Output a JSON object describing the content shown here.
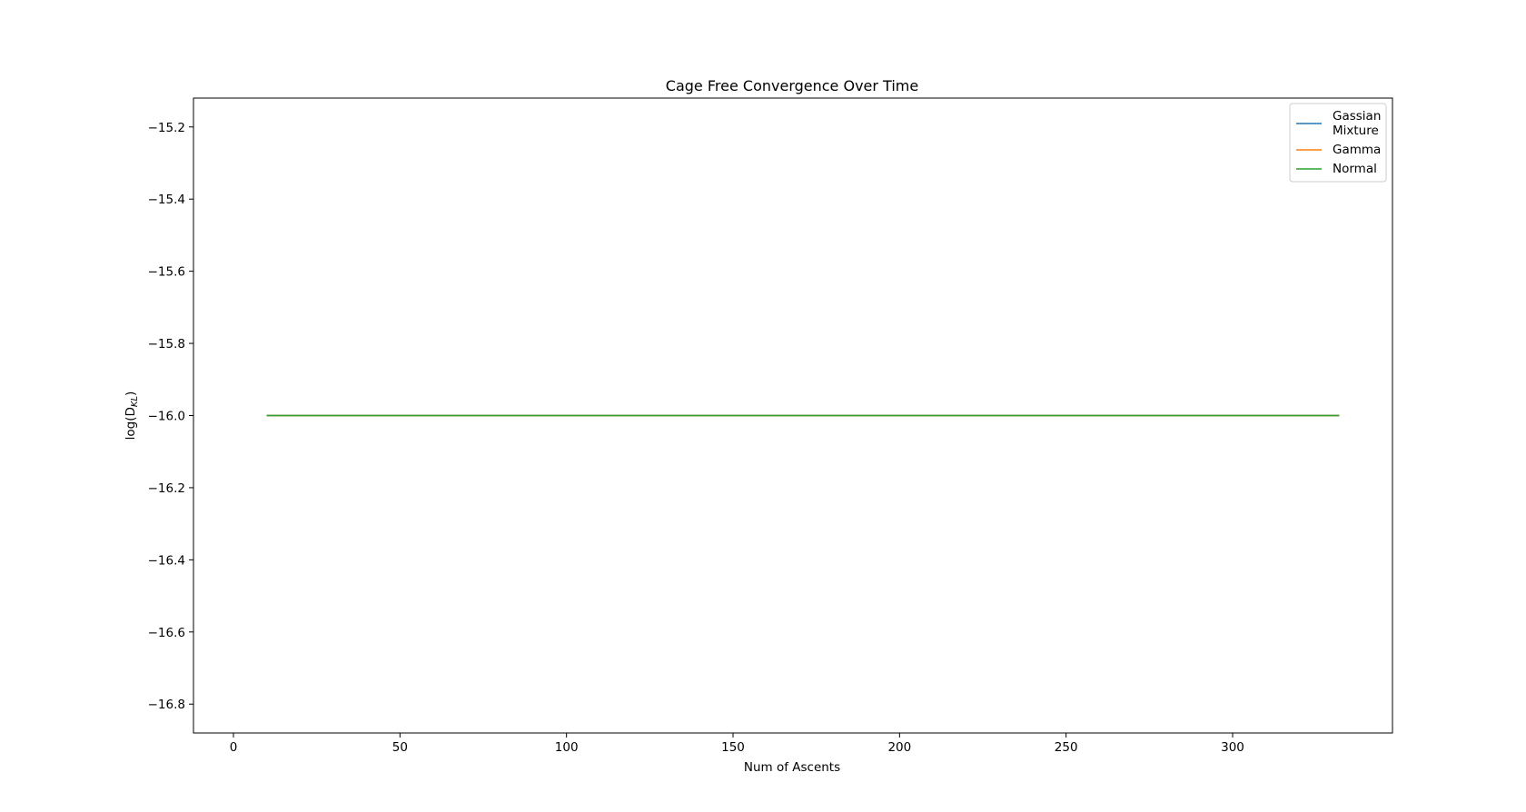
{
  "chart_data": {
    "type": "line",
    "title": "Cage Free Convergence Over Time",
    "xlabel": "Num of Ascents",
    "ylabel": "log(D",
    "ylabel_subscript": "KL",
    "ylabel_close": ")",
    "xlim": [
      -12,
      348
    ],
    "ylim": [
      -16.88,
      -15.12
    ],
    "x_ticks": [
      0,
      50,
      100,
      150,
      200,
      250,
      300
    ],
    "x_tick_labels": [
      "0",
      "50",
      "100",
      "150",
      "200",
      "250",
      "300"
    ],
    "y_ticks": [
      -15.2,
      -15.4,
      -15.6,
      -15.8,
      -16.0,
      -16.2,
      -16.4,
      -16.6,
      -16.8
    ],
    "y_tick_labels": [
      "−15.2",
      "−15.4",
      "−15.6",
      "−15.8",
      "−16.0",
      "−16.2",
      "−16.4",
      "−16.6",
      "−16.8"
    ],
    "grid": false,
    "legend_position": "top-right",
    "series": [
      {
        "name": "Gassian Mixture",
        "legend_lines": [
          "Gassian",
          "Mixture"
        ],
        "color": "#1f77b4",
        "x": [
          10,
          332
        ],
        "y": [
          -16.0,
          -16.0
        ]
      },
      {
        "name": "Gamma",
        "legend_lines": [
          "Gamma"
        ],
        "color": "#ff7f0e",
        "x": [
          10,
          332
        ],
        "y": [
          -16.0,
          -16.0
        ]
      },
      {
        "name": "Normal",
        "legend_lines": [
          "Normal"
        ],
        "color": "#2ca02c",
        "x": [
          10,
          332
        ],
        "y": [
          -16.0,
          -16.0
        ]
      }
    ]
  }
}
